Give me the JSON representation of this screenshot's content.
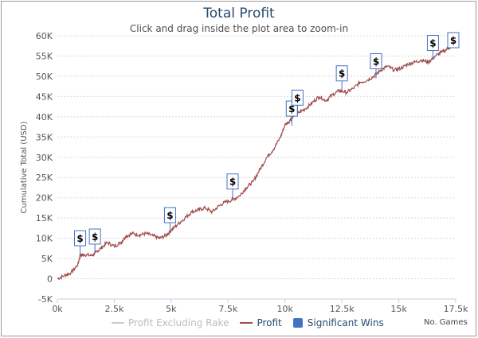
{
  "chart_data": {
    "type": "line",
    "title": "Total Profit",
    "subtitle": "Click and drag inside the plot area to zoom-in",
    "ylabel": "Cumulative Total (USD)",
    "xlabel": "No. Games",
    "xlim": [
      0,
      17500
    ],
    "ylim": [
      -5000,
      60000
    ],
    "x_ticks": [
      "0k",
      "2.5k",
      "5k",
      "7.5k",
      "10k",
      "12.5k",
      "15k",
      "17.5k"
    ],
    "x_tick_values": [
      0,
      2500,
      5000,
      7500,
      10000,
      12500,
      15000,
      17500
    ],
    "y_ticks": [
      "-5K",
      "0",
      "5K",
      "10K",
      "15K",
      "20K",
      "25K",
      "30K",
      "35K",
      "40K",
      "45K",
      "50K",
      "55K",
      "60K"
    ],
    "y_tick_values": [
      -5000,
      0,
      5000,
      10000,
      15000,
      20000,
      25000,
      30000,
      35000,
      40000,
      45000,
      50000,
      55000,
      60000
    ],
    "grid": "horizontal dashed",
    "legend_position": "bottom",
    "series": [
      {
        "name": "Profit",
        "color": "#a04a4a",
        "x": [
          0,
          300,
          600,
          900,
          1000,
          1200,
          1500,
          1700,
          1900,
          2200,
          2500,
          2800,
          3000,
          3300,
          3600,
          3900,
          4200,
          4500,
          4800,
          5000,
          5300,
          5600,
          5900,
          6200,
          6500,
          6800,
          7100,
          7400,
          7700,
          8000,
          8300,
          8600,
          8900,
          9200,
          9500,
          9800,
          10000,
          10200,
          10400,
          10600,
          10900,
          11200,
          11500,
          11800,
          12100,
          12400,
          12700,
          13000,
          13300,
          13600,
          13900,
          14200,
          14500,
          14800,
          15100,
          15400,
          15700,
          16000,
          16300,
          16600,
          16900,
          17200,
          17400
        ],
        "y": [
          0,
          800,
          1500,
          3500,
          5800,
          6000,
          5700,
          6500,
          7500,
          9000,
          8000,
          9000,
          10500,
          11200,
          10800,
          11200,
          10600,
          10000,
          10800,
          12000,
          13500,
          15000,
          16500,
          17000,
          17500,
          16500,
          18000,
          19000,
          19500,
          20500,
          22500,
          24000,
          27000,
          30000,
          32000,
          35000,
          38000,
          39000,
          40500,
          41000,
          42000,
          43500,
          45000,
          44000,
          45500,
          46500,
          46000,
          47000,
          48500,
          49000,
          50000,
          51500,
          52500,
          51500,
          52000,
          53000,
          53500,
          54000,
          53500,
          55000,
          56000,
          57000,
          57500
        ]
      },
      {
        "name": "Profit Excluding Rake",
        "color": "#bfbfbf",
        "hidden": true
      },
      {
        "name": "Significant Wins",
        "color": "#4572c4",
        "marker": "$",
        "points": [
          {
            "x": 1000,
            "y": 5800
          },
          {
            "x": 1650,
            "y": 6200
          },
          {
            "x": 4950,
            "y": 11500
          },
          {
            "x": 7700,
            "y": 19800
          },
          {
            "x": 10300,
            "y": 37800
          },
          {
            "x": 10550,
            "y": 40500
          },
          {
            "x": 12500,
            "y": 46500
          },
          {
            "x": 14000,
            "y": 49500
          },
          {
            "x": 16500,
            "y": 54000
          },
          {
            "x": 17450,
            "y": 57000
          }
        ]
      }
    ]
  },
  "legend": {
    "items": [
      {
        "label": "Profit Excluding Rake",
        "color": "#cccccc"
      },
      {
        "label": "Profit",
        "color": "#a04a4a"
      },
      {
        "label": "Significant Wins",
        "color": "#4572c4"
      }
    ]
  },
  "corner_note": "No. Games"
}
